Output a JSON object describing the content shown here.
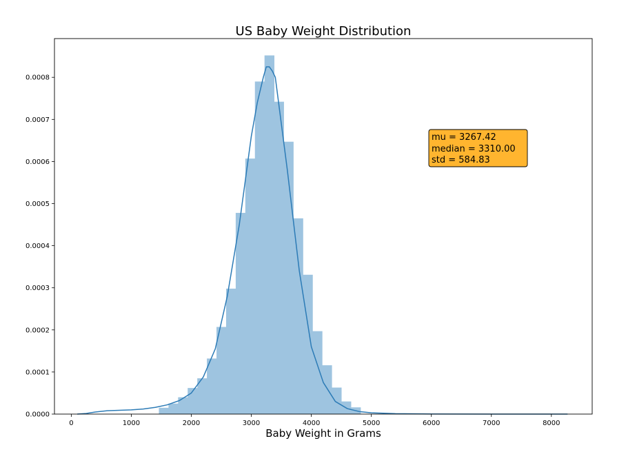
{
  "chart_data": {
    "type": "bar",
    "subtype": "histogram_with_kde",
    "title": "US Baby Weight Distribution",
    "xlabel": "Baby Weight in Grams",
    "ylabel": "",
    "xlim": [
      -280,
      8680
    ],
    "ylim": [
      0,
      0.000892
    ],
    "x_ticks": [
      0,
      1000,
      2000,
      3000,
      4000,
      5000,
      6000,
      7000,
      8000
    ],
    "y_ticks": [
      0.0,
      0.0001,
      0.0002,
      0.0003,
      0.0004,
      0.0005,
      0.0006,
      0.0007,
      0.0008
    ],
    "y_tick_labels": [
      "0.0000",
      "0.0001",
      "0.0002",
      "0.0003",
      "0.0004",
      "0.0005",
      "0.0006",
      "0.0007",
      "0.0008"
    ],
    "grid": false,
    "bar_color": "#9ec4e0",
    "line_color": "#2c7bb6",
    "bins": [
      {
        "x0": 1460,
        "x1": 1620,
        "density": 1.5e-05
      },
      {
        "x0": 1620,
        "x1": 1780,
        "density": 2.5e-05
      },
      {
        "x0": 1780,
        "x1": 1940,
        "density": 4e-05
      },
      {
        "x0": 1940,
        "x1": 2100,
        "density": 6.2e-05
      },
      {
        "x0": 2100,
        "x1": 2260,
        "density": 8.5e-05
      },
      {
        "x0": 2260,
        "x1": 2420,
        "density": 0.000132
      },
      {
        "x0": 2420,
        "x1": 2580,
        "density": 0.000207
      },
      {
        "x0": 2580,
        "x1": 2740,
        "density": 0.000298
      },
      {
        "x0": 2740,
        "x1": 2900,
        "density": 0.000478
      },
      {
        "x0": 2900,
        "x1": 3060,
        "density": 0.000607
      },
      {
        "x0": 3060,
        "x1": 3220,
        "density": 0.00079
      },
      {
        "x0": 3220,
        "x1": 3380,
        "density": 0.000852
      },
      {
        "x0": 3380,
        "x1": 3540,
        "density": 0.000742
      },
      {
        "x0": 3540,
        "x1": 3700,
        "density": 0.000647
      },
      {
        "x0": 3700,
        "x1": 3860,
        "density": 0.000465
      },
      {
        "x0": 3860,
        "x1": 4020,
        "density": 0.000331
      },
      {
        "x0": 4020,
        "x1": 4180,
        "density": 0.000197
      },
      {
        "x0": 4180,
        "x1": 4340,
        "density": 0.000116
      },
      {
        "x0": 4340,
        "x1": 4500,
        "density": 6.3e-05
      },
      {
        "x0": 4500,
        "x1": 4660,
        "density": 3e-05
      },
      {
        "x0": 4660,
        "x1": 4820,
        "density": 1.6e-05
      }
    ],
    "kde": {
      "x": [
        100,
        250,
        400,
        600,
        800,
        1000,
        1200,
        1400,
        1600,
        1800,
        2000,
        2200,
        2400,
        2600,
        2800,
        3000,
        3100,
        3200,
        3250,
        3300,
        3350,
        3400,
        3500,
        3600,
        3800,
        4000,
        4200,
        4400,
        4600,
        4800,
        5000,
        5400,
        6000,
        7000,
        8270
      ],
      "y": [
        0.0,
        1.5e-06,
        5e-06,
        8e-06,
        9e-06,
        1e-05,
        1.2e-05,
        1.6e-05,
        2.2e-05,
        3.2e-05,
        5e-05,
        8.8e-05,
        0.000155,
        0.00028,
        0.00045,
        0.00066,
        0.00074,
        0.0008,
        0.000825,
        0.000825,
        0.000815,
        0.0008,
        0.00069,
        0.00058,
        0.00034,
        0.00016,
        7.5e-05,
        3e-05,
        1.3e-05,
        6e-06,
        3e-06,
        1e-06,
        3e-07,
        1e-07,
        0.0
      ]
    },
    "annotation": {
      "lines": [
        "mu = 3267.42",
        "median = 3310.00",
        "std = 584.83"
      ],
      "background": "#ffb52f",
      "border": "#000000"
    }
  }
}
